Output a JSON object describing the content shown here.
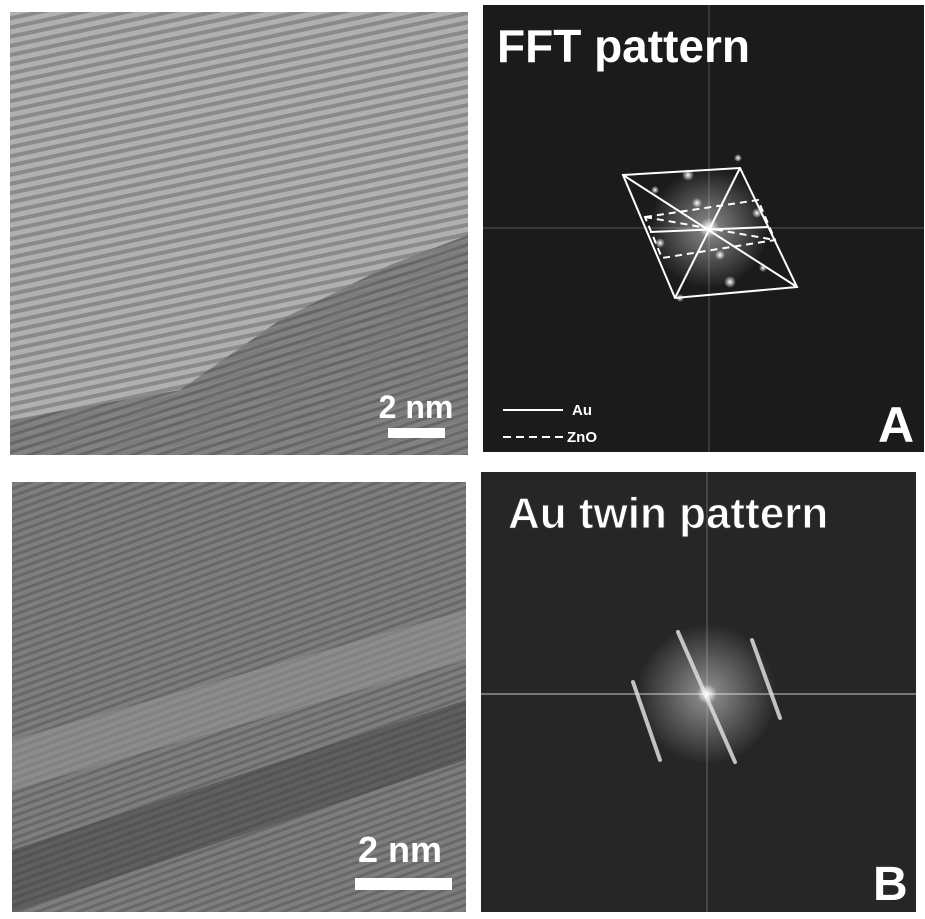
{
  "panels": [
    {
      "scale_bar": "2 nm"
    },
    {
      "title": "FFT pattern",
      "legend": [
        "Au",
        "ZnO"
      ],
      "label": "A"
    },
    {
      "scale_bar": "2 nm"
    },
    {
      "title": "Au twin pattern",
      "label": "B"
    }
  ]
}
